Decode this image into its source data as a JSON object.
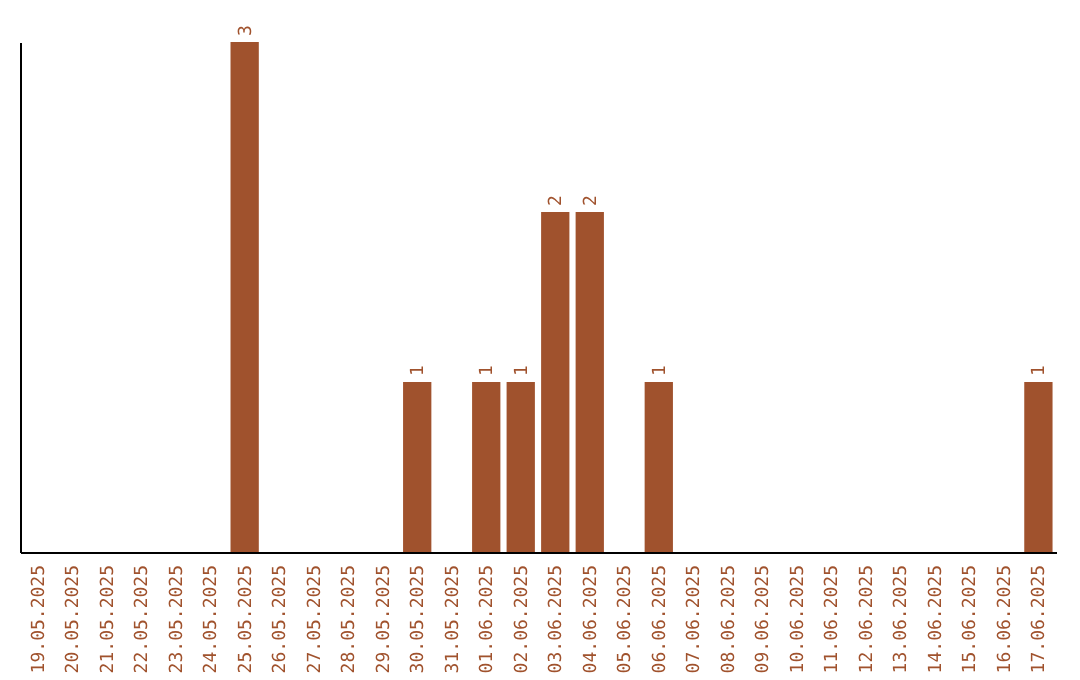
{
  "chart_data": {
    "type": "bar",
    "categories": [
      "19.05.2025",
      "20.05.2025",
      "21.05.2025",
      "22.05.2025",
      "23.05.2025",
      "24.05.2025",
      "25.05.2025",
      "26.05.2025",
      "27.05.2025",
      "28.05.2025",
      "29.05.2025",
      "30.05.2025",
      "31.05.2025",
      "01.06.2025",
      "02.06.2025",
      "03.06.2025",
      "04.06.2025",
      "05.06.2025",
      "06.06.2025",
      "07.06.2025",
      "08.06.2025",
      "09.06.2025",
      "10.06.2025",
      "11.06.2025",
      "12.06.2025",
      "13.06.2025",
      "14.06.2025",
      "15.06.2025",
      "16.06.2025",
      "17.06.2025"
    ],
    "values": [
      0,
      0,
      0,
      0,
      0,
      0,
      3,
      0,
      0,
      0,
      0,
      1,
      0,
      1,
      1,
      2,
      2,
      0,
      1,
      0,
      0,
      0,
      0,
      0,
      0,
      0,
      0,
      0,
      0,
      1
    ],
    "value_labels": [
      null,
      null,
      null,
      null,
      null,
      null,
      "3",
      null,
      null,
      null,
      null,
      "1",
      null,
      "1",
      "1",
      "2",
      "2",
      null,
      "1",
      null,
      null,
      null,
      null,
      null,
      null,
      null,
      null,
      null,
      null,
      "1"
    ],
    "color": "#a0522d",
    "grid": false,
    "tick_labels": "x"
  }
}
